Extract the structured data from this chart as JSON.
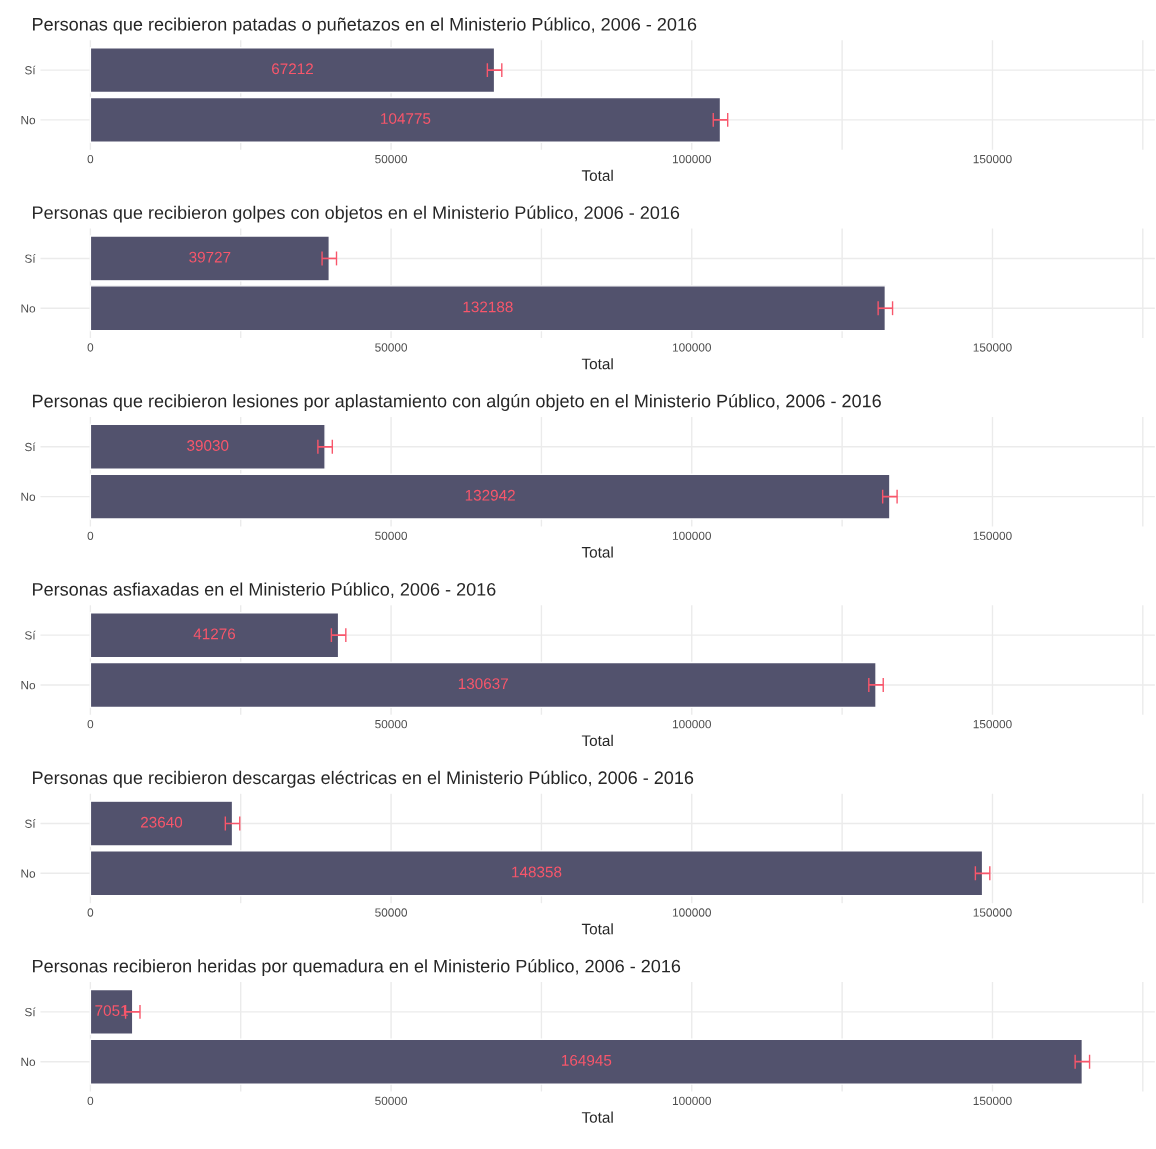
{
  "chart_data": [
    {
      "type": "bar",
      "orientation": "horizontal",
      "title": "Personas que recibieron patadas o puñetazos en el Ministerio Público, 2006 - 2016",
      "xlabel": "Total",
      "categories": [
        "Sí",
        "No"
      ],
      "values": [
        67212,
        104775
      ],
      "errors": [
        1200,
        1200
      ],
      "color": "#4f4f6b",
      "data_labels": true,
      "xlim": [
        -8300,
        177000
      ],
      "xticks": [
        0,
        {
          "value": 25000,
          "label": null
        },
        50000,
        {
          "value": 75000,
          "label": null
        },
        100000,
        {
          "value": 125000,
          "label": null
        },
        150000,
        {
          "value": 175000,
          "label": null
        }
      ],
      "grid": true
    },
    {
      "type": "bar",
      "orientation": "horizontal",
      "title": "Personas que recibieron golpes con objetos en el Ministerio Público, 2006 - 2016",
      "xlabel": "Total",
      "categories": [
        "Sí",
        "No"
      ],
      "values": [
        39727,
        132188
      ],
      "errors": [
        1200,
        1200
      ],
      "color": "#4f4f6b",
      "data_labels": true,
      "xlim": [
        -8300,
        177000
      ],
      "xticks": [
        0,
        {
          "value": 25000,
          "label": null
        },
        50000,
        {
          "value": 75000,
          "label": null
        },
        100000,
        {
          "value": 125000,
          "label": null
        },
        150000,
        {
          "value": 175000,
          "label": null
        }
      ],
      "grid": true
    },
    {
      "type": "bar",
      "orientation": "horizontal",
      "title": "Personas que recibieron lesiones por aplastamiento con algún objeto en el Ministerio Público, 2006 - 2016",
      "xlabel": "Total",
      "categories": [
        "Sí",
        "No"
      ],
      "values": [
        39030,
        132942
      ],
      "errors": [
        1200,
        1200
      ],
      "color": "#4f4f6b",
      "data_labels": true,
      "xlim": [
        -8300,
        177000
      ],
      "xticks": [
        0,
        {
          "value": 25000,
          "label": null
        },
        50000,
        {
          "value": 75000,
          "label": null
        },
        100000,
        {
          "value": 125000,
          "label": null
        },
        150000,
        {
          "value": 175000,
          "label": null
        }
      ],
      "grid": true
    },
    {
      "type": "bar",
      "orientation": "horizontal",
      "title": "Personas asfiaxadas en el Ministerio Público, 2006 - 2016",
      "xlabel": "Total",
      "categories": [
        "Sí",
        "No"
      ],
      "values": [
        41276,
        130637
      ],
      "errors": [
        1200,
        1200
      ],
      "color": "#4f4f6b",
      "data_labels": true,
      "xlim": [
        -8300,
        177000
      ],
      "xticks": [
        0,
        {
          "value": 25000,
          "label": null
        },
        50000,
        {
          "value": 75000,
          "label": null
        },
        100000,
        {
          "value": 125000,
          "label": null
        },
        150000,
        {
          "value": 175000,
          "label": null
        }
      ],
      "grid": true
    },
    {
      "type": "bar",
      "orientation": "horizontal",
      "title": "Personas que recibieron descargas eléctricas en el Ministerio Público, 2006 - 2016",
      "xlabel": "Total",
      "categories": [
        "Sí",
        "No"
      ],
      "values": [
        23640,
        148358
      ],
      "errors": [
        1200,
        1200
      ],
      "color": "#4f4f6b",
      "data_labels": true,
      "xlim": [
        -8300,
        177000
      ],
      "xticks": [
        0,
        {
          "value": 25000,
          "label": null
        },
        50000,
        {
          "value": 75000,
          "label": null
        },
        100000,
        {
          "value": 125000,
          "label": null
        },
        150000,
        {
          "value": 175000,
          "label": null
        }
      ],
      "grid": true
    },
    {
      "type": "bar",
      "orientation": "horizontal",
      "title": "Personas recibieron heridas por quemadura en el Ministerio Público, 2006 - 2016",
      "xlabel": "Total",
      "categories": [
        "Sí",
        "No"
      ],
      "values": [
        7051,
        164945
      ],
      "errors": [
        1200,
        1200
      ],
      "color": "#4f4f6b",
      "data_labels": true,
      "xlim": [
        -8300,
        177000
      ],
      "xticks": [
        0,
        {
          "value": 25000,
          "label": null
        },
        50000,
        {
          "value": 75000,
          "label": null
        },
        100000,
        {
          "value": 125000,
          "label": null
        },
        150000,
        {
          "value": 175000,
          "label": null
        }
      ],
      "grid": true
    }
  ]
}
